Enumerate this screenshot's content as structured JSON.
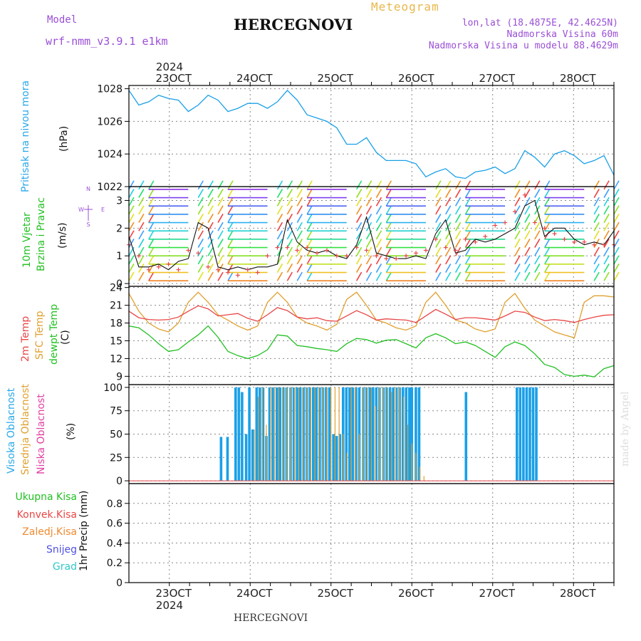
{
  "header": {
    "model_label": "Model",
    "model_name": "wrf-nmm_v3.9.1 e1km",
    "title": "HERCEGNOVI",
    "meteogram": "Meteogram",
    "lonlat": "lon,lat (18.4875E, 42.4625N)",
    "elevation": "Nadmorska Visina 60m",
    "model_elevation": "Nadmorska Visina u modelu 88.4629m",
    "year_top": "2024",
    "year_bottom": "2024",
    "footer": "HERCEGNOVI",
    "watermark": "made by Angel"
  },
  "dates": [
    "23OCT",
    "24OCT",
    "25OCT",
    "26OCT",
    "27OCT",
    "28OCT"
  ],
  "panels": {
    "pressure": {
      "label1": "Pritisak na nivou mora",
      "unit": "(hPa)",
      "yticks": [
        "1022",
        "1024",
        "1026",
        "1028"
      ]
    },
    "wind": {
      "label1": "10m Vjetar",
      "label2": "Brzina i Pravac",
      "unit": "(m/s)",
      "yticks": [
        "0",
        "1",
        "2",
        "3"
      ],
      "compass_n": "N",
      "compass_w": "W",
      "compass_e": "E",
      "compass_s": "S"
    },
    "temp": {
      "label1": "2m Temp",
      "label2": "SFC Temp",
      "label3": "dewpt Temp",
      "unit": "(C)",
      "yticks": [
        "9",
        "12",
        "15",
        "18",
        "21",
        "24"
      ]
    },
    "cloud": {
      "label1": "Visoka Oblacnost",
      "label2": "Srednja Oblacnost",
      "label3": "Niska Oblacnost",
      "unit": "(%)",
      "yticks": [
        "0",
        "25",
        "50",
        "75",
        "100"
      ]
    },
    "precip": {
      "unit": "1hr Precip (mm)",
      "yticks": [
        "0",
        "0.2",
        "0.4",
        "0.6",
        "0.8"
      ],
      "legend": [
        {
          "label": "Ukupna Kisa",
          "color": "#22c022"
        },
        {
          "label": "Konvek.Kisa",
          "color": "#e84646"
        },
        {
          "label": "Zaledj.Kisa",
          "color": "#f08a30"
        },
        {
          "label": "Snijeg",
          "color": "#5050e0"
        },
        {
          "label": "Grad",
          "color": "#30c8c8"
        }
      ]
    }
  },
  "colors": {
    "pressure": "#1aa0e8",
    "t2m": "#e84646",
    "sfc": "#e0a030",
    "dewpt": "#22c022",
    "cloud_high": "#1aa0e8",
    "cloud_mid": "#e0a030",
    "wind_speed": "#111111",
    "gusts": "#e84646",
    "label_blue": "#2aa8e8",
    "label_green": "#22c022",
    "label_red": "#e84646",
    "label_orange": "#e0a030",
    "label_magenta": "#e040a0"
  },
  "chart_data": [
    {
      "type": "line",
      "x_range_days": [
        22.5,
        28.5
      ],
      "x_start": "2024-10-22 12:00",
      "x_step_hours": 3,
      "ylim": [
        1022,
        1028.2
      ],
      "series": [
        {
          "values": [
            1027.9,
            1027.0,
            1027.2,
            1027.6,
            1027.4,
            1027.3,
            1026.6,
            1027.0,
            1027.6,
            1027.3,
            1026.6,
            1026.8,
            1027.1,
            1027.1,
            1026.8,
            1027.2,
            1027.9,
            1027.3,
            1026.4,
            1026.2,
            1026.0,
            1025.6,
            1024.6,
            1024.6,
            1025.0,
            1024.1,
            1023.6,
            1023.6,
            1023.6,
            1023.4,
            1022.6,
            1022.9,
            1023.1,
            1022.6,
            1022.5,
            1022.9,
            1023.0,
            1023.2,
            1022.8,
            1023.1,
            1024.2,
            1023.8,
            1023.2,
            1024.0,
            1024.2,
            1023.9,
            1023.4,
            1023.6,
            1023.9,
            1022.7
          ]
        }
      ]
    },
    {
      "type": "line",
      "x_range_days": [
        22.5,
        28.5
      ],
      "ylim": [
        -0.1,
        3.5
      ],
      "series": [
        {
          "values": [
            1.7,
            0.6,
            0.6,
            0.7,
            0.5,
            0.8,
            0.9,
            2.2,
            2.0,
            0.6,
            0.5,
            0.6,
            0.5,
            0.6,
            0.6,
            0.7,
            2.3,
            1.5,
            1.2,
            1.1,
            1.2,
            1.0,
            0.9,
            1.4,
            2.4,
            1.1,
            1.0,
            0.9,
            0.9,
            1.0,
            0.9,
            1.8,
            2.3,
            1.1,
            1.2,
            1.6,
            1.5,
            1.6,
            1.8,
            2.0,
            2.8,
            3.0,
            1.7,
            2.0,
            2.0,
            1.6,
            1.4,
            1.5,
            1.4,
            1.9
          ]
        },
        {
          "values": [
            1.4,
            1.0,
            0.5,
            0.6,
            0.7,
            0.5,
            1.2,
            1.1,
            0.6,
            0.5,
            0.4,
            0.3,
            0.5,
            0.4,
            1.0,
            1.3,
            1.3,
            1.2,
            1.3,
            1.1,
            1.2,
            1.0,
            1.0,
            1.3,
            1.2,
            1.0,
            0.9,
            0.9,
            1.0,
            1.1,
            1.2,
            1.6,
            1.3,
            1.2,
            1.6,
            1.5,
            1.7,
            2.1,
            2.2,
            2.6,
            3.2,
            2.2,
            2.0,
            1.8,
            1.6,
            1.5,
            1.5,
            1.4,
            1.4,
            1.4
          ]
        }
      ]
    },
    {
      "type": "line",
      "x_range_days": [
        22.5,
        28.5
      ],
      "ylim": [
        7.6,
        24.2
      ],
      "series": [
        {
          "values": [
            20.0,
            18.9,
            18.6,
            18.5,
            18.6,
            19.0,
            20.0,
            20.9,
            20.4,
            19.2,
            19.4,
            19.6,
            18.8,
            18.3,
            19.4,
            20.6,
            20.1,
            19.0,
            18.7,
            18.9,
            18.4,
            18.3,
            19.2,
            20.1,
            19.4,
            18.5,
            18.7,
            18.6,
            18.5,
            18.1,
            19.2,
            20.3,
            19.5,
            18.6,
            18.9,
            18.9,
            18.7,
            18.5,
            19.2,
            20.0,
            19.8,
            19.0,
            18.4,
            18.6,
            18.4,
            18.1,
            18.6,
            19.0,
            19.3,
            19.4
          ]
        },
        {
          "values": [
            23.0,
            20.0,
            18.0,
            17.0,
            16.5,
            18.0,
            21.5,
            23.2,
            21.5,
            19.4,
            18.5,
            17.5,
            16.8,
            17.5,
            21.5,
            23.2,
            21.5,
            19.0,
            18.0,
            17.5,
            16.8,
            17.8,
            22.0,
            23.2,
            21.0,
            18.5,
            18.0,
            17.2,
            16.8,
            17.5,
            21.5,
            23.2,
            21.0,
            18.5,
            18.0,
            17.0,
            16.5,
            17.0,
            21.5,
            23.0,
            20.5,
            18.5,
            17.5,
            16.5,
            16.0,
            15.5,
            21.5,
            22.6,
            22.6,
            22.4
          ]
        },
        {
          "values": [
            17.5,
            17.2,
            16.0,
            14.5,
            13.2,
            13.5,
            14.8,
            16.0,
            17.5,
            15.6,
            13.2,
            12.5,
            12.0,
            12.5,
            13.5,
            16.0,
            15.8,
            14.2,
            14.0,
            13.7,
            13.5,
            13.2,
            14.5,
            15.4,
            15.2,
            14.6,
            15.1,
            15.2,
            14.5,
            13.8,
            15.5,
            16.2,
            15.5,
            14.5,
            14.8,
            14.2,
            13.2,
            12.2,
            14.0,
            14.8,
            14.2,
            12.8,
            11.0,
            10.5,
            9.3,
            9.0,
            9.2,
            8.9,
            10.3,
            10.8
          ]
        }
      ]
    },
    {
      "type": "bar",
      "x_range_days": [
        22.5,
        28.5
      ],
      "ylim": [
        -3,
        103
      ],
      "series": [
        {
          "x_days": [
            23.64,
            23.72,
            23.82,
            23.86,
            23.9,
            23.95,
            23.99,
            24.03,
            24.08,
            24.12,
            24.16,
            24.2,
            24.24,
            24.28,
            24.33,
            24.37,
            24.41,
            24.45,
            24.5,
            24.54,
            24.58,
            24.62,
            24.66,
            24.7,
            24.74,
            24.78,
            24.82,
            24.86,
            24.9,
            24.94,
            24.98,
            25.03,
            25.07,
            25.11,
            25.15,
            25.19,
            25.23,
            25.27,
            25.31,
            25.35,
            25.4,
            25.44,
            25.48,
            25.52,
            25.56,
            25.6,
            25.65,
            25.69,
            25.73,
            25.77,
            25.81,
            25.85,
            25.89,
            25.93,
            25.97,
            26.0,
            26.05,
            26.09,
            26.67,
            27.3,
            27.34,
            27.38,
            27.42,
            27.46,
            27.5,
            27.54
          ],
          "values": [
            47,
            47,
            100,
            100,
            95,
            50,
            100,
            55,
            100,
            100,
            100,
            48,
            100,
            100,
            100,
            100,
            100,
            100,
            100,
            100,
            100,
            100,
            100,
            100,
            100,
            100,
            100,
            100,
            100,
            100,
            100,
            50,
            48,
            50,
            100,
            100,
            100,
            100,
            100,
            100,
            100,
            100,
            100,
            100,
            100,
            100,
            100,
            100,
            100,
            100,
            100,
            100,
            100,
            100,
            100,
            100,
            100,
            100,
            95,
            100,
            100,
            100,
            100,
            100,
            100,
            100
          ]
        },
        {
          "x_days": [
            24.05,
            24.1,
            24.15,
            24.2,
            24.25,
            24.3,
            24.35,
            24.4,
            24.45,
            24.5,
            24.55,
            24.6,
            24.65,
            24.7,
            24.75,
            24.8,
            24.85,
            24.9,
            24.95,
            25.0,
            25.05,
            25.1,
            25.15,
            25.2,
            25.25,
            25.3,
            25.35,
            25.4,
            25.45,
            25.5,
            25.55,
            25.6,
            25.65,
            25.7,
            25.75,
            25.8,
            25.85,
            25.9,
            25.95,
            26.0,
            26.05,
            26.1,
            26.15
          ],
          "values": [
            55,
            90,
            100,
            60,
            100,
            100,
            100,
            100,
            100,
            100,
            100,
            100,
            100,
            100,
            100,
            100,
            100,
            100,
            100,
            100,
            100,
            100,
            50,
            30,
            100,
            100,
            50,
            100,
            100,
            100,
            80,
            100,
            100,
            100,
            95,
            100,
            100,
            90,
            60,
            40,
            30,
            15,
            5
          ]
        }
      ]
    },
    {
      "type": "line",
      "x_range_days": [
        22.5,
        28.5
      ],
      "ylim": [
        0,
        1.0
      ],
      "series": [
        {
          "values": [
            0,
            0,
            0,
            0,
            0,
            0,
            0,
            0,
            0,
            0,
            0,
            0,
            0,
            0,
            0,
            0,
            0,
            0,
            0,
            0,
            0,
            0,
            0,
            0,
            0,
            0,
            0,
            0,
            0,
            0,
            0,
            0,
            0,
            0,
            0,
            0,
            0,
            0,
            0,
            0,
            0,
            0,
            0,
            0,
            0,
            0,
            0,
            0,
            0,
            0
          ]
        }
      ]
    }
  ]
}
